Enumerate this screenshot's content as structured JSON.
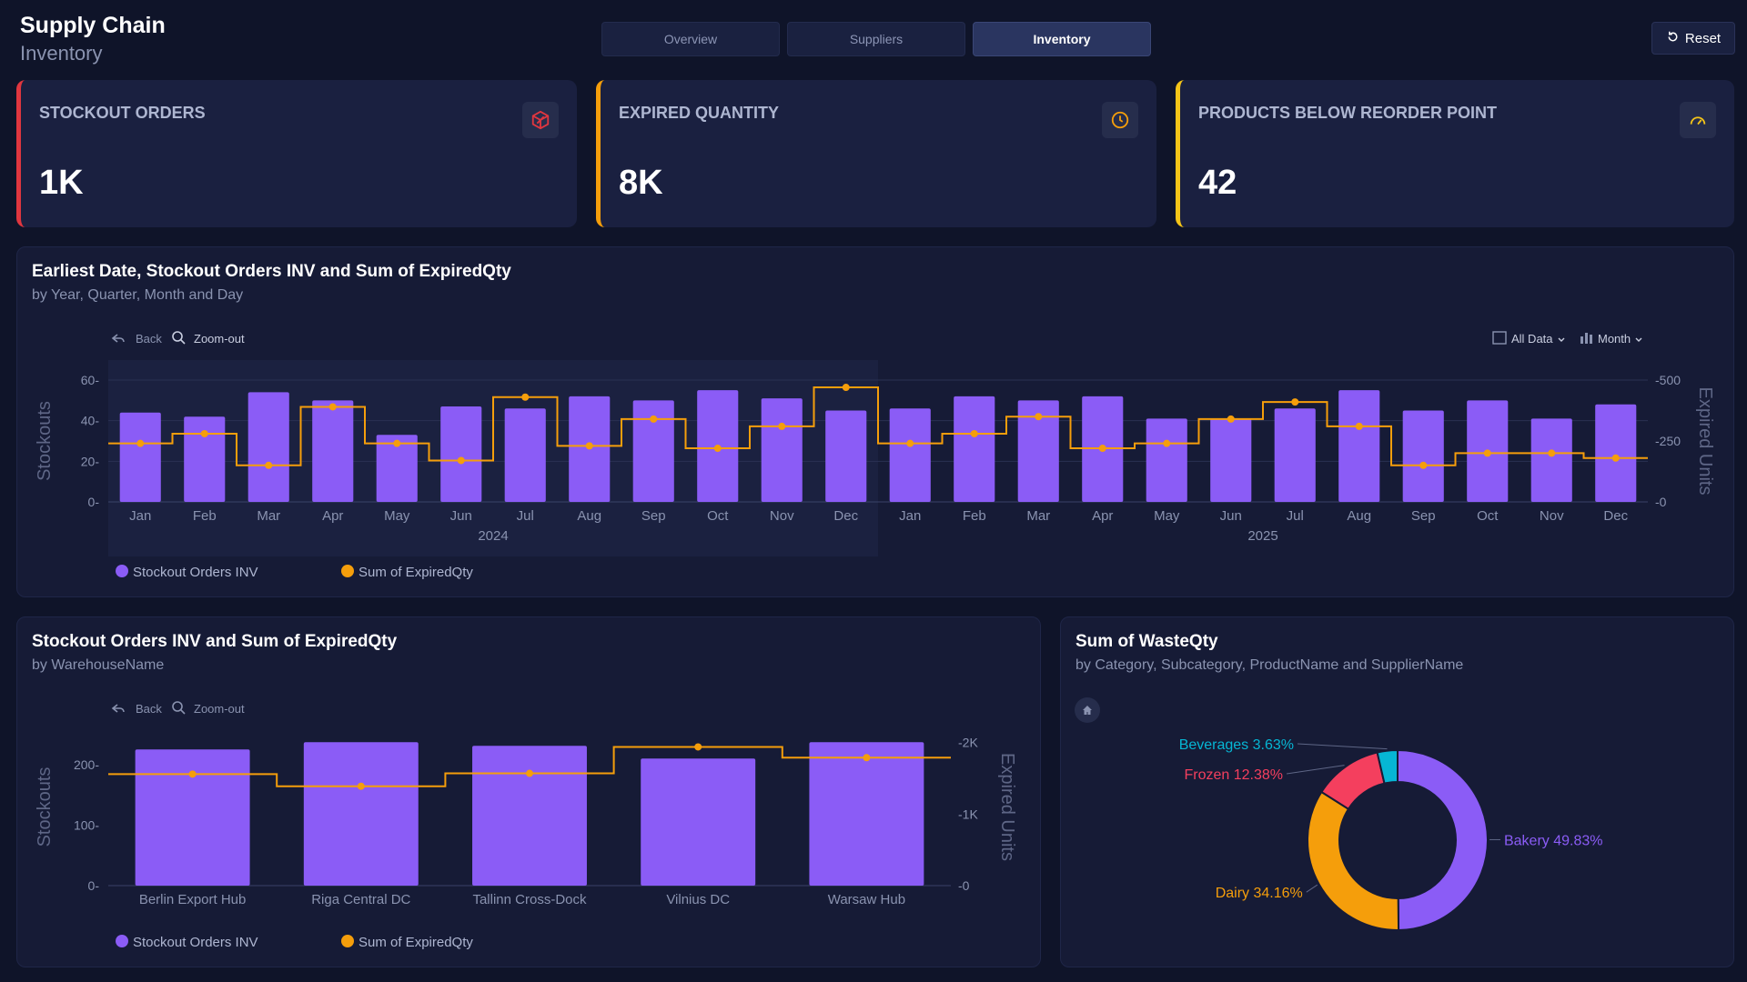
{
  "header": {
    "title": "Supply Chain",
    "subtitle": "Inventory",
    "reset_label": "Reset"
  },
  "tabs": [
    {
      "label": "Overview",
      "active": false
    },
    {
      "label": "Suppliers",
      "active": false
    },
    {
      "label": "Inventory",
      "active": true
    }
  ],
  "kpis": [
    {
      "label": "STOCKOUT ORDERS",
      "value": "1K",
      "accent": "#e0363f",
      "icon": "box-icon"
    },
    {
      "label": "EXPIRED QUANTITY",
      "value": "8K",
      "accent": "#f59e0b",
      "icon": "clock-icon"
    },
    {
      "label": "PRODUCTS BELOW REORDER POINT",
      "value": "42",
      "accent": "#f5c518",
      "icon": "gauge-icon"
    }
  ],
  "colors": {
    "stockout": "#8b5cf6",
    "expired": "#f59e0b",
    "frozen": "#f43f5e",
    "beverages": "#06b6d4",
    "bakery": "#8b5cf6",
    "dairy": "#f59e0b"
  },
  "toolbar": {
    "back": "Back",
    "zoom_out": "Zoom-out",
    "all_data": "All Data",
    "month": "Month"
  },
  "chart_data": [
    {
      "type": "bar",
      "title": "Earliest Date, Stockout Orders INV and Sum of ExpiredQty",
      "subtitle": "by Year, Quarter, Month and Day",
      "categories": [
        "Jan",
        "Feb",
        "Mar",
        "Apr",
        "May",
        "Jun",
        "Jul",
        "Aug",
        "Sep",
        "Oct",
        "Nov",
        "Dec",
        "Jan",
        "Feb",
        "Mar",
        "Apr",
        "May",
        "Jun",
        "Jul",
        "Aug",
        "Sep",
        "Oct",
        "Nov",
        "Dec"
      ],
      "years": [
        {
          "label": "2024",
          "start": 0,
          "end": 11
        },
        {
          "label": "2025",
          "start": 12,
          "end": 23
        }
      ],
      "series": [
        {
          "name": "Stockout Orders INV",
          "kind": "bar",
          "axis": "left",
          "values": [
            44,
            42,
            54,
            50,
            33,
            47,
            46,
            52,
            50,
            55,
            51,
            45,
            46,
            52,
            50,
            52,
            41,
            41,
            46,
            55,
            45,
            50,
            41,
            48
          ]
        },
        {
          "name": "Sum of ExpiredQty",
          "kind": "step",
          "axis": "right",
          "values": [
            240,
            280,
            150,
            390,
            240,
            170,
            430,
            230,
            340,
            220,
            310,
            470,
            240,
            280,
            350,
            220,
            240,
            340,
            410,
            310,
            150,
            200,
            200,
            180
          ]
        }
      ],
      "ylabel": "Stockouts",
      "y2label": "Expired Units",
      "ylim": [
        0,
        60
      ],
      "yticks": [
        "0",
        "20",
        "40",
        "60"
      ],
      "y2lim": [
        0,
        500
      ],
      "y2ticks": [
        "0",
        "250",
        "500"
      ],
      "grid": true,
      "legend": "bottom-left"
    },
    {
      "type": "bar",
      "title": "Stockout Orders INV and Sum of ExpiredQty",
      "subtitle": "by WarehouseName",
      "categories": [
        "Berlin Export Hub",
        "Riga Central DC",
        "Tallinn Cross-Dock",
        "Vilnius DC",
        "Warsaw Hub"
      ],
      "series": [
        {
          "name": "Stockout Orders INV",
          "kind": "bar",
          "axis": "left",
          "values": [
            225,
            237,
            231,
            210,
            237
          ]
        },
        {
          "name": "Sum of ExpiredQty",
          "kind": "step",
          "axis": "right",
          "values": [
            1560,
            1390,
            1570,
            1940,
            1790
          ]
        }
      ],
      "ylabel": "Stockouts",
      "y2label": "Expired Units",
      "ylim": [
        0,
        260
      ],
      "yticks": [
        "0",
        "100",
        "200"
      ],
      "y2lim": [
        0,
        2200
      ],
      "y2ticks": [
        "0",
        "1K",
        "2K"
      ],
      "grid": false,
      "legend": "bottom-left"
    },
    {
      "type": "pie",
      "title": "Sum of WasteQty",
      "subtitle": "by Category, Subcategory, ProductName and SupplierName",
      "slices": [
        {
          "label": "Bakery",
          "value": 49.83,
          "text": "Bakery 49.83%"
        },
        {
          "label": "Dairy",
          "value": 34.16,
          "text": "Dairy 34.16%"
        },
        {
          "label": "Frozen",
          "value": 12.38,
          "text": "Frozen 12.38%"
        },
        {
          "label": "Beverages",
          "value": 3.63,
          "text": "Beverages 3.63%"
        }
      ],
      "donut": true
    }
  ]
}
